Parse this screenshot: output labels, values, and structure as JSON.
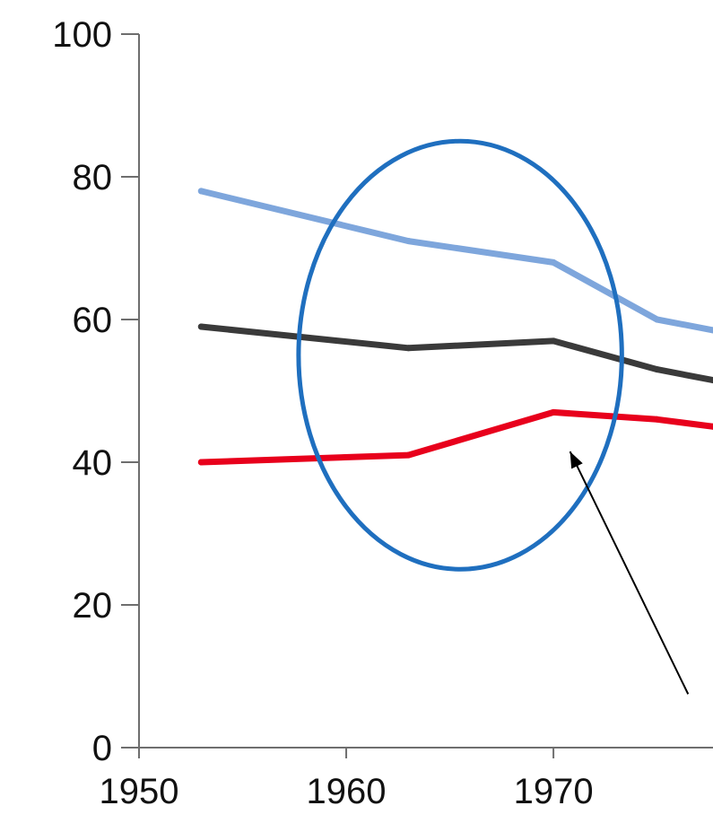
{
  "chart_data": {
    "type": "line",
    "title": "",
    "xlabel": "",
    "ylabel": "",
    "xlim": [
      1950,
      1977.7
    ],
    "ylim": [
      0,
      100
    ],
    "x_ticks": [
      "1950",
      "1960",
      "1970"
    ],
    "y_ticks": [
      "0",
      "20",
      "40",
      "60",
      "80",
      "100"
    ],
    "grid": false,
    "legend": "none",
    "series": [
      {
        "color": "#7ea6dc",
        "x": [
          1953,
          1963,
          1970,
          1975,
          1977.7
        ],
        "y": [
          78,
          71,
          68,
          60,
          58.5
        ]
      },
      {
        "color": "#3a3a3a",
        "x": [
          1953,
          1963,
          1970,
          1975,
          1977.7
        ],
        "y": [
          59,
          56,
          57,
          53,
          51.5
        ]
      },
      {
        "color": "#e8001c",
        "x": [
          1953,
          1963,
          1970,
          1975,
          1977.7
        ],
        "y": [
          40,
          41,
          47,
          46,
          45
        ]
      }
    ],
    "annotations": [
      {
        "type": "ellipse",
        "color": "#1f6fbf",
        "center_x": 1965.5,
        "center_y": 55,
        "rx_years": 7.8,
        "ry_units": 30
      },
      {
        "type": "arrow",
        "color": "#000000",
        "from_x": 1976.5,
        "from_y": 7.5,
        "to_x": 1970.8,
        "to_y": 41.5
      }
    ]
  }
}
